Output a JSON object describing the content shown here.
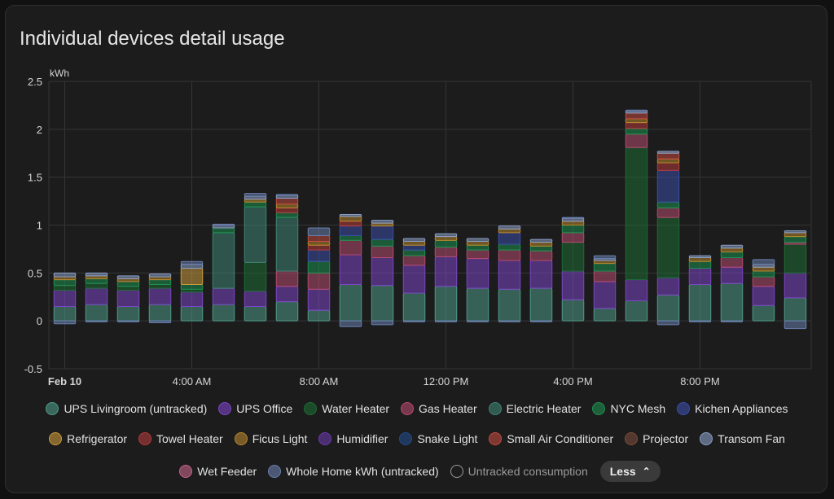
{
  "card": {
    "title": "Individual devices detail usage"
  },
  "legend_less_label": "Less",
  "chart_data": {
    "type": "bar",
    "stacked": true,
    "ylabel": "kWh",
    "ylim": [
      -0.5,
      2.5
    ],
    "yticks": [
      -0.5,
      0,
      0.5,
      1,
      1.5,
      2,
      2.5
    ],
    "ytick_labels": [
      "-0.5",
      "0",
      "0.5",
      "1",
      "1.5",
      "2",
      "2.5"
    ],
    "xtick_labels": [
      {
        "hour": 0,
        "label": "Feb 10"
      },
      {
        "hour": 4,
        "label": "4:00 AM"
      },
      {
        "hour": 8,
        "label": "8:00 AM"
      },
      {
        "hour": 12,
        "label": "12:00 PM"
      },
      {
        "hour": 16,
        "label": "4:00 PM"
      },
      {
        "hour": 20,
        "label": "8:00 PM"
      }
    ],
    "grid": true,
    "legend_position": "bottom",
    "hours": [
      0,
      1,
      2,
      3,
      4,
      5,
      6,
      7,
      8,
      9,
      10,
      11,
      12,
      13,
      14,
      15,
      16,
      17,
      18,
      19,
      20,
      21,
      22,
      23
    ],
    "series": [
      {
        "name": "UPS Livingroom (untracked)",
        "color": "#4e9a88",
        "values": [
          0.15,
          0.17,
          0.15,
          0.17,
          0.15,
          0.17,
          0.15,
          0.2,
          0.11,
          0.38,
          0.37,
          0.29,
          0.36,
          0.34,
          0.33,
          0.34,
          0.22,
          0.13,
          0.21,
          0.27,
          0.38,
          0.39,
          0.16,
          0.24
        ]
      },
      {
        "name": "UPS Office",
        "color": "#7b45c4",
        "values": [
          0.17,
          0.17,
          0.17,
          0.17,
          0.15,
          0.17,
          0.16,
          0.16,
          0.22,
          0.31,
          0.29,
          0.29,
          0.31,
          0.31,
          0.3,
          0.29,
          0.3,
          0.28,
          0.22,
          0.18,
          0.17,
          0.17,
          0.2,
          0.26
        ]
      },
      {
        "name": "Water Heater",
        "color": "#1d6b34",
        "values": [
          0.05,
          0.05,
          0.04,
          0.04,
          0.03,
          0.0,
          0.3,
          0.0,
          0.0,
          0.0,
          0.0,
          0.0,
          0.0,
          0.0,
          0.0,
          0.0,
          0.3,
          0.0,
          1.38,
          0.63,
          0.0,
          0.0,
          0.0,
          0.3
        ]
      },
      {
        "name": "Gas Heater",
        "color": "#b54a6e",
        "values": [
          0.0,
          0.0,
          0.0,
          0.0,
          0.0,
          0.0,
          0.0,
          0.16,
          0.17,
          0.15,
          0.12,
          0.1,
          0.1,
          0.09,
          0.11,
          0.1,
          0.1,
          0.11,
          0.14,
          0.1,
          0.0,
          0.1,
          0.1,
          0.02
        ]
      },
      {
        "name": "Electric Heater",
        "color": "#3f8374",
        "values": [
          0.0,
          0.0,
          0.0,
          0.0,
          0.0,
          0.58,
          0.58,
          0.56,
          0.0,
          0.0,
          0.0,
          0.0,
          0.0,
          0.0,
          0.0,
          0.0,
          0.0,
          0.0,
          0.0,
          0.0,
          0.0,
          0.0,
          0.0,
          0.0
        ]
      },
      {
        "name": "NYC Mesh",
        "color": "#1e8f50",
        "values": [
          0.06,
          0.05,
          0.05,
          0.05,
          0.05,
          0.05,
          0.05,
          0.05,
          0.12,
          0.05,
          0.07,
          0.06,
          0.07,
          0.05,
          0.06,
          0.05,
          0.08,
          0.08,
          0.06,
          0.06,
          0.07,
          0.06,
          0.06,
          0.06
        ]
      },
      {
        "name": "Kichen Appliances",
        "color": "#3a4ea8",
        "values": [
          0.0,
          0.0,
          0.0,
          0.0,
          0.0,
          0.0,
          0.0,
          0.0,
          0.12,
          0.1,
          0.14,
          0.05,
          0.0,
          0.0,
          0.12,
          0.0,
          0.0,
          0.0,
          0.0,
          0.33,
          0.0,
          0.0,
          0.0,
          0.0
        ]
      },
      {
        "name": "Refrigerator",
        "color": "#c99a3c",
        "values": [
          0.0,
          0.0,
          0.0,
          0.0,
          0.17,
          0.0,
          0.0,
          0.0,
          0.0,
          0.0,
          0.0,
          0.0,
          0.0,
          0.0,
          0.0,
          0.0,
          0.0,
          0.0,
          0.0,
          0.0,
          0.0,
          0.0,
          0.0,
          0.0
        ]
      },
      {
        "name": "Towel Heater",
        "color": "#b33a3a",
        "values": [
          0.0,
          0.0,
          0.0,
          0.0,
          0.0,
          0.0,
          0.0,
          0.05,
          0.05,
          0.05,
          0.0,
          0.0,
          0.0,
          0.0,
          0.0,
          0.0,
          0.0,
          0.0,
          0.06,
          0.08,
          0.0,
          0.0,
          0.0,
          0.0
        ]
      },
      {
        "name": "Ficus Light",
        "color": "#b8862e",
        "values": [
          0.03,
          0.03,
          0.03,
          0.03,
          0.0,
          0.0,
          0.03,
          0.04,
          0.04,
          0.05,
          0.03,
          0.04,
          0.04,
          0.04,
          0.04,
          0.04,
          0.04,
          0.03,
          0.04,
          0.04,
          0.04,
          0.04,
          0.04,
          0.04
        ]
      },
      {
        "name": "Humidifier",
        "color": "#6a3aa8",
        "values": [
          0.0,
          0.0,
          0.0,
          0.0,
          0.0,
          0.0,
          0.0,
          0.0,
          0.0,
          0.0,
          0.0,
          0.0,
          0.0,
          0.0,
          0.0,
          0.0,
          0.0,
          0.0,
          0.0,
          0.0,
          0.0,
          0.0,
          0.0,
          0.0
        ]
      },
      {
        "name": "Snake Light",
        "color": "#234a8a",
        "values": [
          0.0,
          0.0,
          0.0,
          0.0,
          0.0,
          0.0,
          0.0,
          0.0,
          0.0,
          0.0,
          0.0,
          0.0,
          0.0,
          0.0,
          0.0,
          0.0,
          0.0,
          0.0,
          0.0,
          0.0,
          0.0,
          0.0,
          0.0,
          0.0
        ]
      },
      {
        "name": "Small Air Conditioner",
        "color": "#c24b40",
        "values": [
          0.0,
          0.0,
          0.0,
          0.0,
          0.0,
          0.0,
          0.0,
          0.06,
          0.06,
          0.0,
          0.0,
          0.0,
          0.0,
          0.0,
          0.0,
          0.0,
          0.0,
          0.0,
          0.06,
          0.06,
          0.0,
          0.0,
          0.0,
          0.0
        ]
      },
      {
        "name": "Projector",
        "color": "#7a4a3a",
        "values": [
          0.0,
          0.0,
          0.0,
          0.0,
          0.0,
          0.0,
          0.0,
          0.0,
          0.0,
          0.0,
          0.0,
          0.0,
          0.0,
          0.0,
          0.0,
          0.0,
          0.0,
          0.0,
          0.0,
          0.0,
          0.0,
          0.0,
          0.0,
          0.0
        ]
      },
      {
        "name": "Transom Fan",
        "color": "#8a9ec4",
        "values": [
          0.04,
          0.03,
          0.03,
          0.03,
          0.04,
          0.03,
          0.03,
          0.03,
          0.0,
          0.02,
          0.03,
          0.03,
          0.03,
          0.03,
          0.03,
          0.03,
          0.03,
          0.02,
          0.02,
          0.02,
          0.02,
          0.03,
          0.03,
          0.02
        ]
      },
      {
        "name": "Wet Feeder",
        "color": "#c46488",
        "values": [
          0.0,
          0.0,
          0.0,
          0.0,
          0.0,
          0.0,
          0.0,
          0.0,
          0.0,
          0.0,
          0.0,
          0.0,
          0.0,
          0.0,
          0.0,
          0.0,
          0.0,
          0.0,
          0.0,
          0.0,
          0.0,
          0.0,
          0.0,
          0.0
        ]
      },
      {
        "name": "Whole Home kWh (untracked)",
        "color": "#6a7fae",
        "values": [
          -0.03,
          -0.01,
          -0.01,
          -0.02,
          0.03,
          0.01,
          0.03,
          0.01,
          0.08,
          -0.06,
          -0.04,
          -0.01,
          -0.01,
          -0.01,
          -0.01,
          -0.01,
          0.01,
          0.03,
          0.01,
          -0.04,
          -0.01,
          -0.01,
          0.05,
          -0.08
        ]
      },
      {
        "name": "Untracked consumption",
        "color": "#9a9a9a",
        "hollow": true,
        "values": [
          0,
          0,
          0,
          0,
          0,
          0,
          0,
          0,
          0,
          0,
          0,
          0,
          0,
          0,
          0,
          0,
          0,
          0,
          0,
          0,
          0,
          0,
          0,
          0
        ]
      }
    ]
  }
}
